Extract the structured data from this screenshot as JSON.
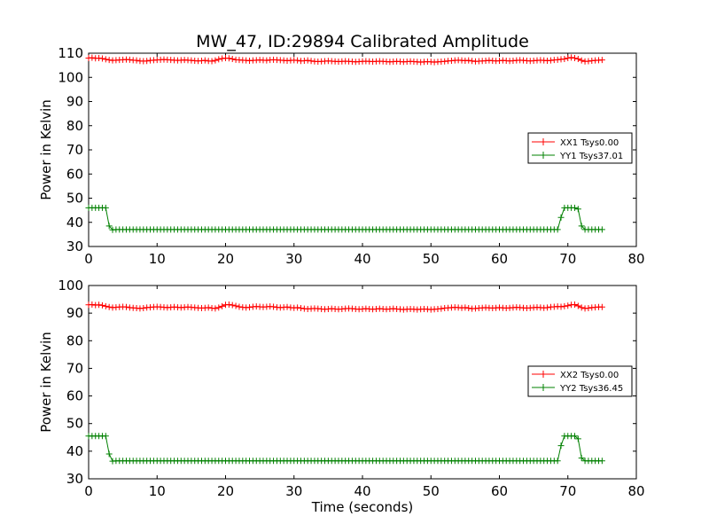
{
  "figure": {
    "title": "MW_47, ID:29894 Calibrated Amplitude"
  },
  "colors": {
    "xx": "#ff0000",
    "yy": "#008000",
    "axes": "#000000",
    "background": "#ffffff"
  },
  "chart_data": [
    {
      "type": "line",
      "title": "MW_47, ID:29894 Calibrated Amplitude",
      "xlabel": "",
      "ylabel": "Power in Kelvin",
      "xlim": [
        0,
        80
      ],
      "ylim": [
        30,
        110
      ],
      "xticks": [
        0,
        10,
        20,
        30,
        40,
        50,
        60,
        70,
        80
      ],
      "yticks": [
        30,
        40,
        50,
        60,
        70,
        80,
        90,
        100,
        110
      ],
      "grid": false,
      "legend_position": "center-right",
      "marker": "+",
      "x": [
        0.0,
        0.5,
        1.0,
        1.5,
        2.0,
        2.5,
        3.0,
        3.5,
        4.0,
        4.5,
        5.0,
        5.5,
        6.0,
        6.5,
        7.0,
        7.5,
        8.0,
        8.5,
        9.0,
        9.5,
        10.0,
        10.5,
        11.0,
        11.5,
        12.0,
        12.5,
        13.0,
        13.5,
        14.0,
        14.5,
        15.0,
        15.5,
        16.0,
        16.5,
        17.0,
        17.5,
        18.0,
        18.5,
        19.0,
        19.5,
        20.0,
        20.5,
        21.0,
        21.5,
        22.0,
        22.5,
        23.0,
        23.5,
        24.0,
        24.5,
        25.0,
        25.5,
        26.0,
        26.5,
        27.0,
        27.5,
        28.0,
        28.5,
        29.0,
        29.5,
        30.0,
        30.5,
        31.0,
        31.5,
        32.0,
        32.5,
        33.0,
        33.5,
        34.0,
        34.5,
        35.0,
        35.5,
        36.0,
        36.5,
        37.0,
        37.5,
        38.0,
        38.5,
        39.0,
        39.5,
        40.0,
        40.5,
        41.0,
        41.5,
        42.0,
        42.5,
        43.0,
        43.5,
        44.0,
        44.5,
        45.0,
        45.5,
        46.0,
        46.5,
        47.0,
        47.5,
        48.0,
        48.5,
        49.0,
        49.5,
        50.0,
        50.5,
        51.0,
        51.5,
        52.0,
        52.5,
        53.0,
        53.5,
        54.0,
        54.5,
        55.0,
        55.5,
        56.0,
        56.5,
        57.0,
        57.5,
        58.0,
        58.5,
        59.0,
        59.5,
        60.0,
        60.5,
        61.0,
        61.5,
        62.0,
        62.5,
        63.0,
        63.5,
        64.0,
        64.5,
        65.0,
        65.5,
        66.0,
        66.5,
        67.0,
        67.5,
        68.0,
        68.5,
        69.0,
        69.5,
        70.0,
        70.5,
        71.0,
        71.5,
        72.0,
        72.5,
        73.0,
        73.5,
        74.0,
        74.5,
        75.0
      ],
      "series": [
        {
          "name": "XX1 Tsys0.00",
          "color": "#ff0000",
          "values": [
            108.0,
            108.1,
            107.9,
            108.0,
            107.8,
            107.5,
            107.2,
            107.0,
            107.1,
            107.2,
            107.3,
            107.4,
            107.3,
            107.1,
            107.0,
            106.8,
            106.7,
            106.8,
            107.0,
            107.1,
            107.2,
            107.3,
            107.4,
            107.3,
            107.2,
            107.1,
            107.0,
            107.1,
            107.2,
            107.1,
            107.0,
            106.9,
            106.8,
            106.9,
            107.0,
            106.8,
            106.7,
            107.0,
            107.5,
            107.8,
            108.0,
            107.9,
            107.6,
            107.3,
            107.2,
            107.1,
            107.0,
            106.9,
            107.0,
            107.1,
            107.2,
            107.1,
            107.0,
            107.2,
            107.3,
            107.2,
            107.1,
            107.0,
            106.9,
            107.0,
            107.1,
            107.0,
            106.8,
            106.9,
            107.0,
            106.8,
            106.6,
            106.5,
            106.6,
            106.7,
            106.8,
            106.7,
            106.6,
            106.5,
            106.6,
            106.7,
            106.6,
            106.5,
            106.4,
            106.5,
            106.6,
            106.7,
            106.6,
            106.5,
            106.6,
            106.7,
            106.6,
            106.5,
            106.4,
            106.5,
            106.6,
            106.5,
            106.4,
            106.5,
            106.6,
            106.5,
            106.4,
            106.3,
            106.4,
            106.5,
            106.4,
            106.3,
            106.4,
            106.5,
            106.6,
            106.8,
            106.9,
            107.0,
            107.1,
            107.0,
            106.9,
            107.0,
            106.8,
            106.6,
            106.7,
            106.8,
            106.9,
            107.0,
            106.9,
            106.8,
            106.9,
            107.0,
            106.9,
            106.8,
            106.9,
            107.0,
            107.1,
            107.0,
            106.9,
            106.8,
            106.9,
            107.0,
            107.1,
            107.0,
            106.9,
            107.0,
            107.2,
            107.3,
            107.5,
            107.6,
            108.0,
            108.2,
            108.0,
            107.6,
            107.0,
            106.6,
            106.7,
            106.9,
            107.0,
            107.1,
            107.2
          ]
        },
        {
          "name": "YY1 Tsys37.01",
          "color": "#008000",
          "values": [
            46.0,
            46.0,
            46.0,
            46.0,
            46.0,
            46.0,
            38.5,
            36.9,
            37.0,
            37.0,
            37.0,
            37.0,
            37.0,
            37.0,
            37.0,
            37.0,
            37.0,
            37.0,
            37.0,
            37.0,
            37.0,
            37.0,
            37.0,
            37.0,
            37.0,
            37.0,
            37.0,
            37.0,
            37.0,
            37.0,
            37.0,
            37.0,
            37.0,
            37.0,
            37.0,
            37.0,
            37.0,
            37.0,
            37.0,
            37.0,
            37.0,
            37.0,
            37.0,
            37.0,
            37.0,
            37.0,
            37.0,
            37.0,
            37.0,
            37.0,
            37.0,
            37.0,
            37.0,
            37.0,
            37.0,
            37.0,
            37.0,
            37.0,
            37.0,
            37.0,
            37.0,
            37.0,
            37.0,
            37.0,
            37.0,
            37.0,
            37.0,
            37.0,
            37.0,
            37.0,
            37.0,
            37.0,
            37.0,
            37.0,
            37.0,
            37.0,
            37.0,
            37.0,
            37.0,
            37.0,
            37.0,
            37.0,
            37.0,
            37.0,
            37.0,
            37.0,
            37.0,
            37.0,
            37.0,
            37.0,
            37.0,
            37.0,
            37.0,
            37.0,
            37.0,
            37.0,
            37.0,
            37.0,
            37.0,
            37.0,
            37.0,
            37.0,
            37.0,
            37.0,
            37.0,
            37.0,
            37.0,
            37.0,
            37.0,
            37.0,
            37.0,
            37.0,
            37.0,
            37.0,
            37.0,
            37.0,
            37.0,
            37.0,
            37.0,
            37.0,
            37.0,
            37.0,
            37.0,
            37.0,
            37.0,
            37.0,
            37.0,
            37.0,
            37.0,
            37.0,
            37.0,
            37.0,
            37.0,
            37.0,
            37.0,
            37.0,
            37.0,
            37.0,
            42.0,
            46.0,
            46.0,
            46.0,
            46.0,
            45.5,
            38.5,
            37.0,
            37.0,
            37.0,
            37.0,
            37.0,
            37.0
          ]
        }
      ]
    },
    {
      "type": "line",
      "title": "",
      "xlabel": "Time (seconds)",
      "ylabel": "Power in Kelvin",
      "xlim": [
        0,
        80
      ],
      "ylim": [
        30,
        100
      ],
      "xticks": [
        0,
        10,
        20,
        30,
        40,
        50,
        60,
        70,
        80
      ],
      "yticks": [
        30,
        40,
        50,
        60,
        70,
        80,
        90,
        100
      ],
      "grid": false,
      "legend_position": "center-right",
      "marker": "+",
      "x": [
        0.0,
        0.5,
        1.0,
        1.5,
        2.0,
        2.5,
        3.0,
        3.5,
        4.0,
        4.5,
        5.0,
        5.5,
        6.0,
        6.5,
        7.0,
        7.5,
        8.0,
        8.5,
        9.0,
        9.5,
        10.0,
        10.5,
        11.0,
        11.5,
        12.0,
        12.5,
        13.0,
        13.5,
        14.0,
        14.5,
        15.0,
        15.5,
        16.0,
        16.5,
        17.0,
        17.5,
        18.0,
        18.5,
        19.0,
        19.5,
        20.0,
        20.5,
        21.0,
        21.5,
        22.0,
        22.5,
        23.0,
        23.5,
        24.0,
        24.5,
        25.0,
        25.5,
        26.0,
        26.5,
        27.0,
        27.5,
        28.0,
        28.5,
        29.0,
        29.5,
        30.0,
        30.5,
        31.0,
        31.5,
        32.0,
        32.5,
        33.0,
        33.5,
        34.0,
        34.5,
        35.0,
        35.5,
        36.0,
        36.5,
        37.0,
        37.5,
        38.0,
        38.5,
        39.0,
        39.5,
        40.0,
        40.5,
        41.0,
        41.5,
        42.0,
        42.5,
        43.0,
        43.5,
        44.0,
        44.5,
        45.0,
        45.5,
        46.0,
        46.5,
        47.0,
        47.5,
        48.0,
        48.5,
        49.0,
        49.5,
        50.0,
        50.5,
        51.0,
        51.5,
        52.0,
        52.5,
        53.0,
        53.5,
        54.0,
        54.5,
        55.0,
        55.5,
        56.0,
        56.5,
        57.0,
        57.5,
        58.0,
        58.5,
        59.0,
        59.5,
        60.0,
        60.5,
        61.0,
        61.5,
        62.0,
        62.5,
        63.0,
        63.5,
        64.0,
        64.5,
        65.0,
        65.5,
        66.0,
        66.5,
        67.0,
        67.5,
        68.0,
        68.5,
        69.0,
        69.5,
        70.0,
        70.5,
        71.0,
        71.5,
        72.0,
        72.5,
        73.0,
        73.5,
        74.0,
        74.5,
        75.0
      ],
      "series": [
        {
          "name": "XX2 Tsys0.00",
          "color": "#ff0000",
          "values": [
            93.0,
            93.1,
            92.9,
            93.0,
            92.8,
            92.5,
            92.2,
            92.0,
            92.1,
            92.2,
            92.3,
            92.2,
            92.0,
            91.9,
            91.8,
            91.7,
            91.8,
            92.0,
            92.1,
            92.2,
            92.3,
            92.2,
            92.1,
            92.0,
            92.1,
            92.2,
            92.1,
            92.0,
            92.1,
            92.2,
            92.1,
            92.0,
            91.9,
            91.8,
            91.9,
            92.0,
            91.8,
            91.7,
            92.0,
            92.5,
            93.0,
            93.1,
            92.9,
            92.6,
            92.3,
            92.1,
            92.0,
            92.1,
            92.3,
            92.4,
            92.3,
            92.2,
            92.3,
            92.4,
            92.3,
            92.1,
            92.0,
            92.1,
            92.2,
            92.0,
            91.9,
            92.0,
            91.8,
            91.6,
            91.5,
            91.6,
            91.7,
            91.6,
            91.5,
            91.4,
            91.5,
            91.6,
            91.5,
            91.4,
            91.5,
            91.6,
            91.7,
            91.6,
            91.5,
            91.4,
            91.5,
            91.6,
            91.5,
            91.4,
            91.5,
            91.6,
            91.5,
            91.4,
            91.5,
            91.6,
            91.5,
            91.4,
            91.3,
            91.4,
            91.5,
            91.4,
            91.3,
            91.4,
            91.5,
            91.4,
            91.3,
            91.4,
            91.5,
            91.6,
            91.8,
            91.9,
            92.0,
            92.1,
            92.0,
            91.9,
            92.0,
            91.8,
            91.6,
            91.7,
            91.8,
            91.9,
            92.0,
            91.9,
            91.8,
            91.9,
            92.0,
            91.9,
            91.8,
            91.9,
            92.0,
            92.1,
            92.0,
            91.9,
            91.8,
            91.9,
            92.0,
            92.1,
            92.0,
            91.9,
            92.0,
            92.2,
            92.3,
            92.4,
            92.3,
            92.5,
            92.7,
            93.0,
            93.1,
            92.6,
            92.0,
            91.7,
            91.8,
            92.0,
            92.1,
            92.2,
            92.2
          ]
        },
        {
          "name": "YY2 Tsys36.45",
          "color": "#008000",
          "values": [
            45.5,
            45.5,
            45.5,
            45.5,
            45.5,
            45.5,
            39.0,
            36.4,
            36.5,
            36.5,
            36.5,
            36.5,
            36.5,
            36.5,
            36.5,
            36.5,
            36.5,
            36.5,
            36.5,
            36.5,
            36.5,
            36.5,
            36.5,
            36.5,
            36.5,
            36.5,
            36.5,
            36.5,
            36.5,
            36.5,
            36.5,
            36.5,
            36.5,
            36.5,
            36.5,
            36.5,
            36.5,
            36.5,
            36.5,
            36.5,
            36.5,
            36.5,
            36.5,
            36.5,
            36.5,
            36.5,
            36.5,
            36.5,
            36.5,
            36.5,
            36.5,
            36.5,
            36.5,
            36.5,
            36.5,
            36.5,
            36.5,
            36.5,
            36.5,
            36.5,
            36.5,
            36.5,
            36.5,
            36.5,
            36.5,
            36.5,
            36.5,
            36.5,
            36.5,
            36.5,
            36.5,
            36.5,
            36.5,
            36.5,
            36.5,
            36.5,
            36.5,
            36.5,
            36.5,
            36.5,
            36.5,
            36.5,
            36.5,
            36.5,
            36.5,
            36.5,
            36.5,
            36.5,
            36.5,
            36.5,
            36.5,
            36.5,
            36.5,
            36.5,
            36.5,
            36.5,
            36.5,
            36.5,
            36.5,
            36.5,
            36.5,
            36.5,
            36.5,
            36.5,
            36.5,
            36.5,
            36.5,
            36.5,
            36.5,
            36.5,
            36.5,
            36.5,
            36.5,
            36.5,
            36.5,
            36.5,
            36.5,
            36.5,
            36.5,
            36.5,
            36.5,
            36.5,
            36.5,
            36.5,
            36.5,
            36.5,
            36.5,
            36.5,
            36.5,
            36.5,
            36.5,
            36.5,
            36.5,
            36.5,
            36.5,
            36.5,
            36.5,
            36.5,
            42.0,
            45.5,
            45.5,
            45.5,
            45.5,
            44.5,
            37.5,
            36.5,
            36.5,
            36.5,
            36.5,
            36.5,
            36.5
          ]
        }
      ]
    }
  ]
}
